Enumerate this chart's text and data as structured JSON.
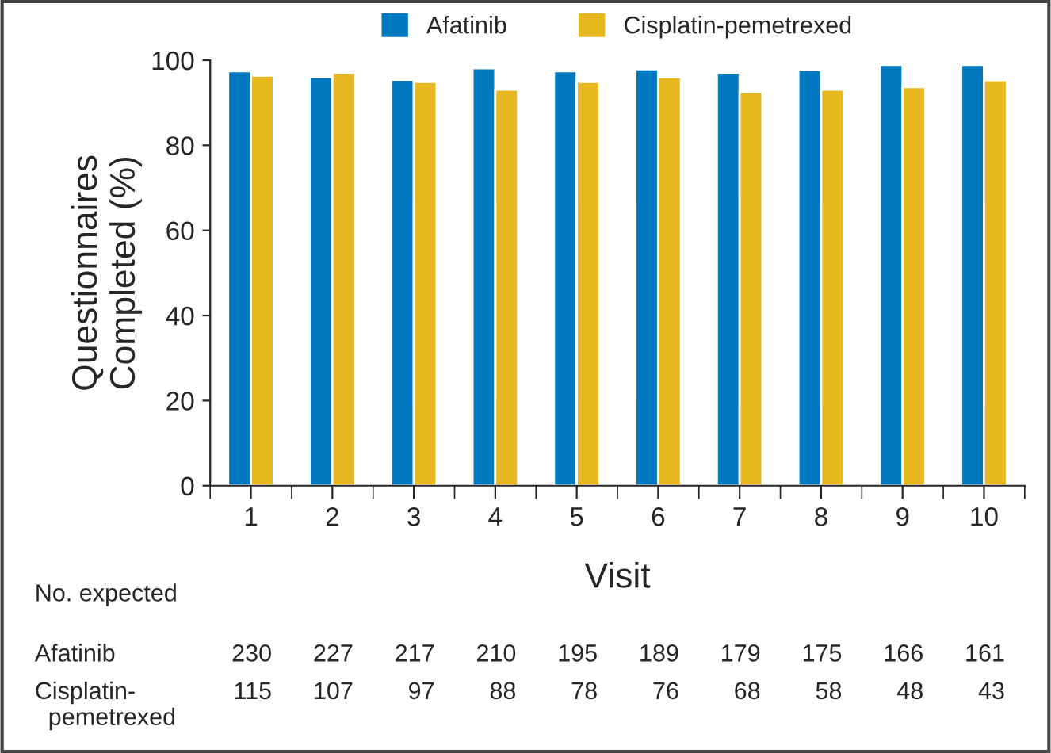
{
  "chart_data": {
    "type": "bar",
    "xlabel": "Visit",
    "ylabel": "Questionnaires\nCompleted (%)",
    "categories": [
      "1",
      "2",
      "3",
      "4",
      "5",
      "6",
      "7",
      "8",
      "9",
      "10"
    ],
    "series": [
      {
        "name": "Afatinib",
        "color": "#0079c1",
        "values": [
          97.4,
          96.0,
          95.4,
          98.1,
          97.4,
          97.9,
          97.1,
          97.7,
          98.9,
          98.9
        ]
      },
      {
        "name": "Cisplatin-pemetrexed",
        "color": "#e8b821",
        "values": [
          96.4,
          97.1,
          94.9,
          93.1,
          94.9,
          96.0,
          92.6,
          93.1,
          93.7,
          95.3
        ]
      }
    ],
    "ylim": [
      0,
      100
    ],
    "yticks": [
      0,
      20,
      40,
      60,
      80,
      100
    ],
    "grid": false,
    "legend": "top",
    "annotations": [
      "No. expected",
      "Afatinib",
      "230",
      "227",
      "217",
      "210",
      "195",
      "189",
      "179",
      "175",
      "166",
      "161",
      "Cisplatin-\n  pemetrexed",
      "115",
      "107",
      "97",
      "88",
      "78",
      "76",
      "68",
      "58",
      "48",
      "43"
    ]
  }
}
